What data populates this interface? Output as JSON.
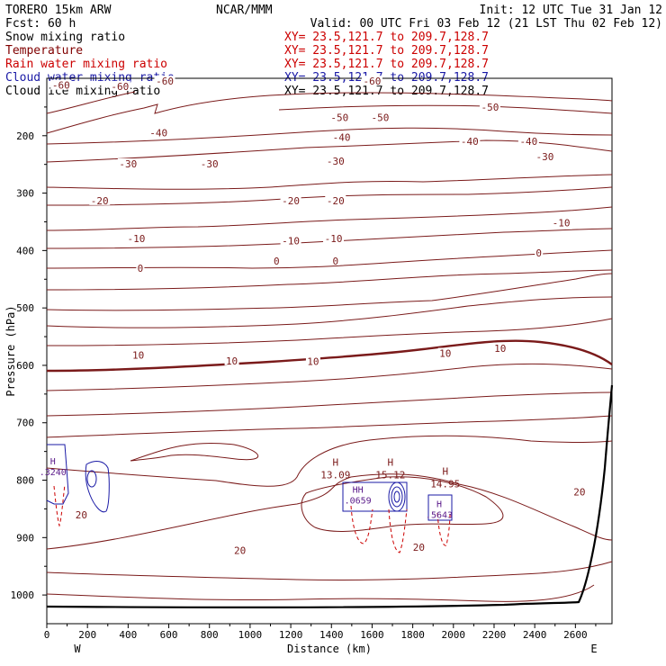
{
  "header": {
    "model": "TORERO  15km ARW",
    "center": "NCAR/MMM",
    "init": "Init: 12 UTC Tue 31 Jan 12",
    "fcst": "Fcst:   60 h",
    "valid": "Valid: 00 UTC Fri 03 Feb 12 (21 LST Thu 02 Feb 12)"
  },
  "fields": [
    {
      "label": "Snow mixing ratio",
      "color": "#000000",
      "xy": "XY=  23.5,121.7 to 209.7,128.7",
      "xy_color": "#cc0000"
    },
    {
      "label": "Temperature",
      "color": "#800000",
      "xy": "XY=  23.5,121.7 to 209.7,128.7",
      "xy_color": "#cc0000"
    },
    {
      "label": "Rain water mixing ratio",
      "color": "#cc0000",
      "xy": "XY=  23.5,121.7 to 209.7,128.7",
      "xy_color": "#cc0000"
    },
    {
      "label": "Cloud water mixing ratio",
      "color": "#1a1aa6",
      "xy": "XY=  23.5,121.7 to 209.7,128.7",
      "xy_color": "#1a1aa6"
    },
    {
      "label": "Cloud ice mixing ratio",
      "color": "#000000",
      "xy": "XY=  23.5,121.7 to 209.7,128.7",
      "xy_color": "#000000"
    }
  ],
  "chart_data": {
    "type": "contour",
    "ylabel": "Pressure (hPa)",
    "xlabel": "Distance (km)",
    "x_ticks": [
      0,
      200,
      400,
      600,
      800,
      1000,
      1200,
      1400,
      1600,
      1800,
      2000,
      2200,
      2400,
      2600
    ],
    "y_ticks": [
      200,
      300,
      400,
      500,
      600,
      700,
      800,
      900,
      1000
    ],
    "xlim": [
      0,
      2780
    ],
    "ylim_pressure": [
      1050,
      100
    ],
    "left_end_label": "W",
    "right_end_label": "E",
    "temperature_contours": [
      {
        "level": "-60",
        "labels": [
          [
            70,
            112
          ],
          [
            360,
            114
          ],
          [
            580,
            105
          ],
          [
            1600,
            105
          ]
        ]
      },
      {
        "level": "-50",
        "labels": [
          [
            1440,
            168
          ],
          [
            1640,
            168
          ],
          [
            2180,
            150
          ]
        ]
      },
      {
        "level": "-40",
        "labels": [
          [
            550,
            195
          ],
          [
            1450,
            203
          ],
          [
            2080,
            210
          ],
          [
            2370,
            210
          ]
        ]
      },
      {
        "level": "-30",
        "labels": [
          [
            400,
            249
          ],
          [
            800,
            249
          ],
          [
            1420,
            244
          ],
          [
            2450,
            236
          ]
        ]
      },
      {
        "level": "-20",
        "labels": [
          [
            260,
            313
          ],
          [
            1200,
            313
          ],
          [
            1420,
            313
          ]
        ]
      },
      {
        "level": "-10",
        "labels": [
          [
            440,
            379
          ],
          [
            1200,
            383
          ],
          [
            1410,
            379
          ],
          [
            2530,
            352
          ]
        ]
      },
      {
        "level": "0",
        "labels": [
          [
            460,
            431
          ],
          [
            1130,
            418
          ],
          [
            1420,
            418
          ],
          [
            2420,
            404
          ]
        ]
      },
      {
        "level": "10",
        "labels": [
          [
            450,
            582
          ],
          [
            910,
            592
          ],
          [
            1310,
            593
          ],
          [
            1960,
            579
          ],
          [
            2230,
            570
          ]
        ]
      },
      {
        "level": "20",
        "labels": [
          [
            170,
            860
          ],
          [
            950,
            922
          ],
          [
            1830,
            917
          ],
          [
            2620,
            820
          ]
        ]
      }
    ],
    "highs": [
      {
        "label": "H",
        "value": "13.09",
        "x": 1420,
        "p": 784
      },
      {
        "label": "H",
        "value": "15.12",
        "x": 1690,
        "p": 784
      },
      {
        "label": "H",
        "value": "14.95",
        "x": 1960,
        "p": 800
      }
    ],
    "cloud_water_maxima": [
      {
        "label": "HH",
        "value": ".0659",
        "x": 1530,
        "p": 830
      },
      {
        "label": "H",
        "value": ".3240",
        "x": 30,
        "p": 780
      },
      {
        "label": "H",
        "value": ".5643",
        "x": 1930,
        "p": 855
      }
    ]
  }
}
